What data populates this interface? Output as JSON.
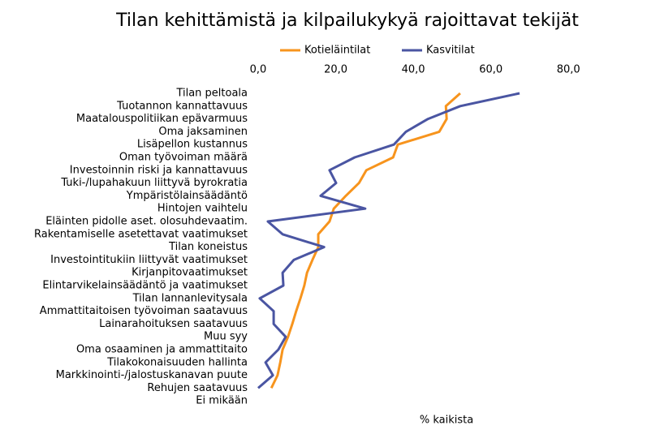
{
  "chart_data": {
    "type": "line",
    "orientation": "horizontal",
    "title": "Tilan kehittämistä ja kilpailukykyä rajoittavat tekijät",
    "xlabel": "% kaikista",
    "categories": [
      "Tilan peltoala",
      "Tuotannon kannattavuus",
      "Maatalouspolitiikan epävarmuus",
      "Oma jaksaminen",
      "Lisäpellon kustannus",
      "Oman työvoiman määrä",
      "Investoinnin riski ja kannattavuus",
      "Tuki-/lupahakuun liittyvä byrokratia",
      "Ympäristölainsäädäntö",
      "Hintojen vaihtelu",
      "Eläinten pidolle aset. olosuhdevaatim.",
      "Rakentamiselle asetettavat vaatimukset",
      "Tilan koneistus",
      "Investointitukiin liittyvät vaatimukset",
      "Kirjanpitovaatimukset",
      "Elintarvikelainsäädäntö ja vaatimukset",
      "Tilan lannanlevitysala",
      "Ammattitaitoisen työvoiman saatavuus",
      "Lainarahoituksen saatavuus",
      "Muu syy",
      "Oma osaaminen ja ammattitaito",
      "Tilakokonaisuuden hallinta",
      "Markkinointi-/jalostuskanavan puute",
      "Rehujen saatavuus",
      "Ei mikään"
    ],
    "series": [
      {
        "name": "Kotieläintilat",
        "color": "#f7941d",
        "values": [
          52.1,
          48.4,
          48.6,
          46.7,
          36.0,
          34.8,
          27.9,
          26.0,
          22.6,
          19.5,
          18.4,
          15.5,
          15.5,
          14.0,
          12.6,
          11.9,
          10.9,
          9.8,
          8.8,
          7.7,
          6.3,
          5.7,
          5.0,
          3.4,
          null
        ]
      },
      {
        "name": "Kasvitilat",
        "color": "#4a55a2",
        "values": [
          67.4,
          52.1,
          43.8,
          38.1,
          35.0,
          24.9,
          18.4,
          20.1,
          16.1,
          27.6,
          2.5,
          6.3,
          17.0,
          9.2,
          6.3,
          6.5,
          0.4,
          4.0,
          4.0,
          7.1,
          5.2,
          1.9,
          3.8,
          0,
          null
        ]
      }
    ],
    "xlim": [
      0,
      90
    ],
    "xticks": [
      {
        "value": 0,
        "label": "0,0"
      },
      {
        "value": 20,
        "label": "20,0"
      },
      {
        "value": 40,
        "label": "40,0"
      },
      {
        "value": 60,
        "label": "60,0"
      },
      {
        "value": 80,
        "label": "80,0"
      }
    ],
    "legend": "top",
    "grid": false
  }
}
